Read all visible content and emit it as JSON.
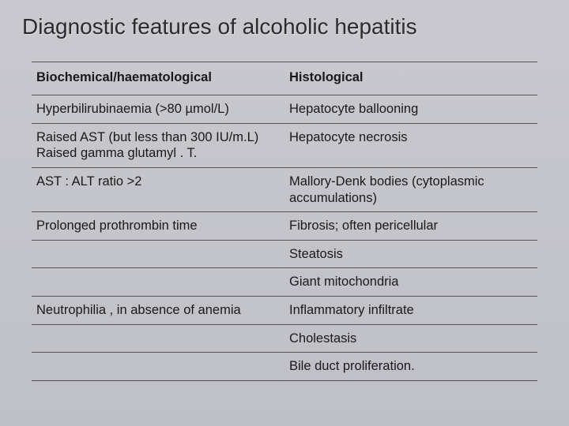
{
  "slide": {
    "title": "Diagnostic features of alcoholic hepatitis",
    "background_color_top": "#c9c9cf",
    "background_color_bottom": "#bfbfc7",
    "title_color": "#2b2b2b",
    "title_fontsize": 28,
    "text_color": "#1a1a1a",
    "font_family": "Arial"
  },
  "table": {
    "type": "table",
    "border_color": "#555555",
    "header_fontweight": "bold",
    "cell_fontsize": 16.5,
    "columns": [
      {
        "key": "biochemical",
        "label": "Biochemical/haematological",
        "width_pct": 50,
        "align": "left"
      },
      {
        "key": "histological",
        "label": "Histological",
        "width_pct": 50,
        "align": "left"
      }
    ],
    "rows": [
      {
        "biochemical": "Hyperbilirubinaemia (>80 µmol/L)",
        "histological": "Hepatocyte ballooning"
      },
      {
        "biochemical": "Raised AST (but less than 300 IU/m.L)\nRaised gamma glutamyl . T.",
        "histological": "Hepatocyte necrosis"
      },
      {
        "biochemical": "AST : ALT ratio >2",
        "histological": "Mallory-Denk bodies (cytoplasmic accumulations)"
      },
      {
        "biochemical": "Prolonged prothrombin time",
        "histological": "Fibrosis; often pericellular"
      },
      {
        "biochemical": "",
        "histological": "Steatosis"
      },
      {
        "biochemical": "",
        "histological": "Giant mitochondria"
      },
      {
        "biochemical": "Neutrophilia , in absence of anemia",
        "histological": "Inflammatory infiltrate"
      },
      {
        "biochemical": "",
        "histological": "Cholestasis"
      },
      {
        "biochemical": "",
        "histological": "Bile duct proliferation."
      }
    ]
  }
}
